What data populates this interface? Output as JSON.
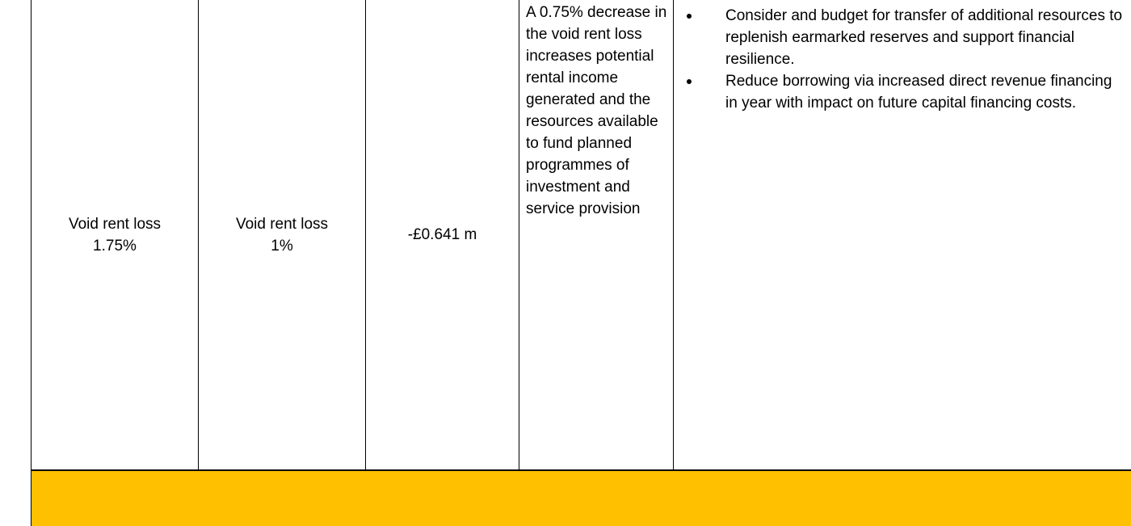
{
  "table": {
    "rows": [
      [
        "Void rent loss\n1.75%",
        "Void rent loss\n1%",
        "-£0.641 m",
        "A 0.75% decrease in the void rent loss increases potential rental income generated and the resources available to fund planned programmes of investment and service provision",
        {
          "bullets": [
            "Consider and budget for transfer of additional resources to replenish earmarked reserves and support financial resilience.",
            "Reduce borrowing via increased direct revenue financing in year with impact on future capital financing costs."
          ]
        }
      ]
    ]
  }
}
